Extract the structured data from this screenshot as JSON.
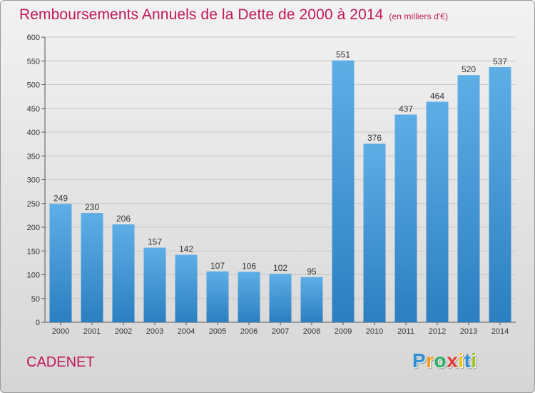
{
  "title": "Remboursements Annuels de la Dette de 2000 à 2014",
  "subtitle": "(en milliers d'€)",
  "town": "CADENET",
  "brand": {
    "letters": [
      "P",
      "r",
      "o",
      "x",
      "i",
      "t",
      "i"
    ],
    "colors": [
      "#2e8fd6",
      "#f39c12",
      "#27ae60",
      "#e53935",
      "#f1c40f",
      "#2e8fd6",
      "#9bc31f"
    ]
  },
  "colors": {
    "title": "#c2185b",
    "bar_top": "#5eaee6",
    "bar_bottom": "#2c7fc0",
    "grid": "#c8c8c8",
    "axis": "#555555"
  },
  "chart_data": {
    "type": "bar",
    "title": "Remboursements Annuels de la Dette de 2000 à 2014",
    "categories": [
      "2000",
      "2001",
      "2002",
      "2003",
      "2004",
      "2005",
      "2006",
      "2007",
      "2008",
      "2009",
      "2010",
      "2011",
      "2012",
      "2013",
      "2014"
    ],
    "values": [
      249,
      230,
      206,
      157,
      142,
      107,
      106,
      102,
      95,
      551,
      376,
      437,
      464,
      520,
      537
    ],
    "ylim": [
      0,
      600
    ],
    "yticks": [
      0,
      50,
      100,
      150,
      200,
      250,
      300,
      350,
      400,
      450,
      500,
      550,
      600
    ],
    "grid": true,
    "legend": "none"
  }
}
